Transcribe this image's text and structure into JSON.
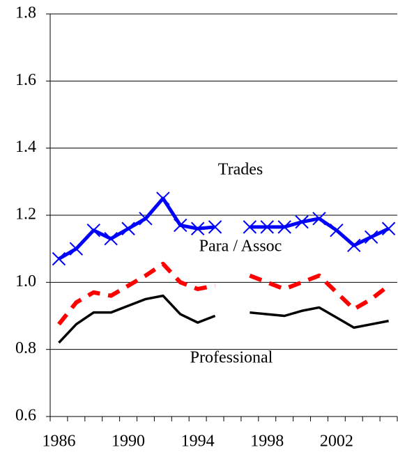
{
  "chart_data": {
    "type": "line",
    "categories": [
      "1986",
      null,
      null,
      null,
      "1990",
      null,
      null,
      null,
      "1994",
      null,
      null,
      null,
      "1998",
      null,
      null,
      null,
      "2002",
      null,
      null,
      null
    ],
    "series": [
      {
        "name": "Trades",
        "color": "#0000ff",
        "marker": "x",
        "dash": false,
        "values": [
          1.07,
          1.1,
          1.155,
          1.13,
          1.16,
          1.19,
          1.25,
          1.17,
          1.16,
          1.165,
          null,
          1.165,
          1.165,
          1.165,
          1.18,
          1.19,
          1.155,
          1.11,
          1.135,
          1.16
        ]
      },
      {
        "name": "Para / Assoc",
        "color": "#ff0000",
        "marker": null,
        "dash": true,
        "values": [
          0.875,
          0.94,
          0.97,
          0.96,
          0.99,
          1.02,
          1.055,
          1.0,
          0.98,
          0.99,
          null,
          1.02,
          1.0,
          0.98,
          1.0,
          1.02,
          0.97,
          0.92,
          0.95,
          0.99
        ]
      },
      {
        "name": "Professional",
        "color": "#000000",
        "marker": null,
        "dash": false,
        "values": [
          0.82,
          0.875,
          0.91,
          0.91,
          0.93,
          0.95,
          0.96,
          0.905,
          0.88,
          0.9,
          null,
          0.91,
          0.905,
          0.9,
          0.915,
          0.925,
          0.895,
          0.865,
          0.875,
          0.885
        ]
      }
    ],
    "ylim": [
      0.6,
      1.8
    ],
    "yticks": [
      0.6,
      0.8,
      {
        "value": 1,
        "label": "1.0"
      },
      1.2,
      1.4,
      1.6,
      1.8
    ],
    "grid": true
  }
}
